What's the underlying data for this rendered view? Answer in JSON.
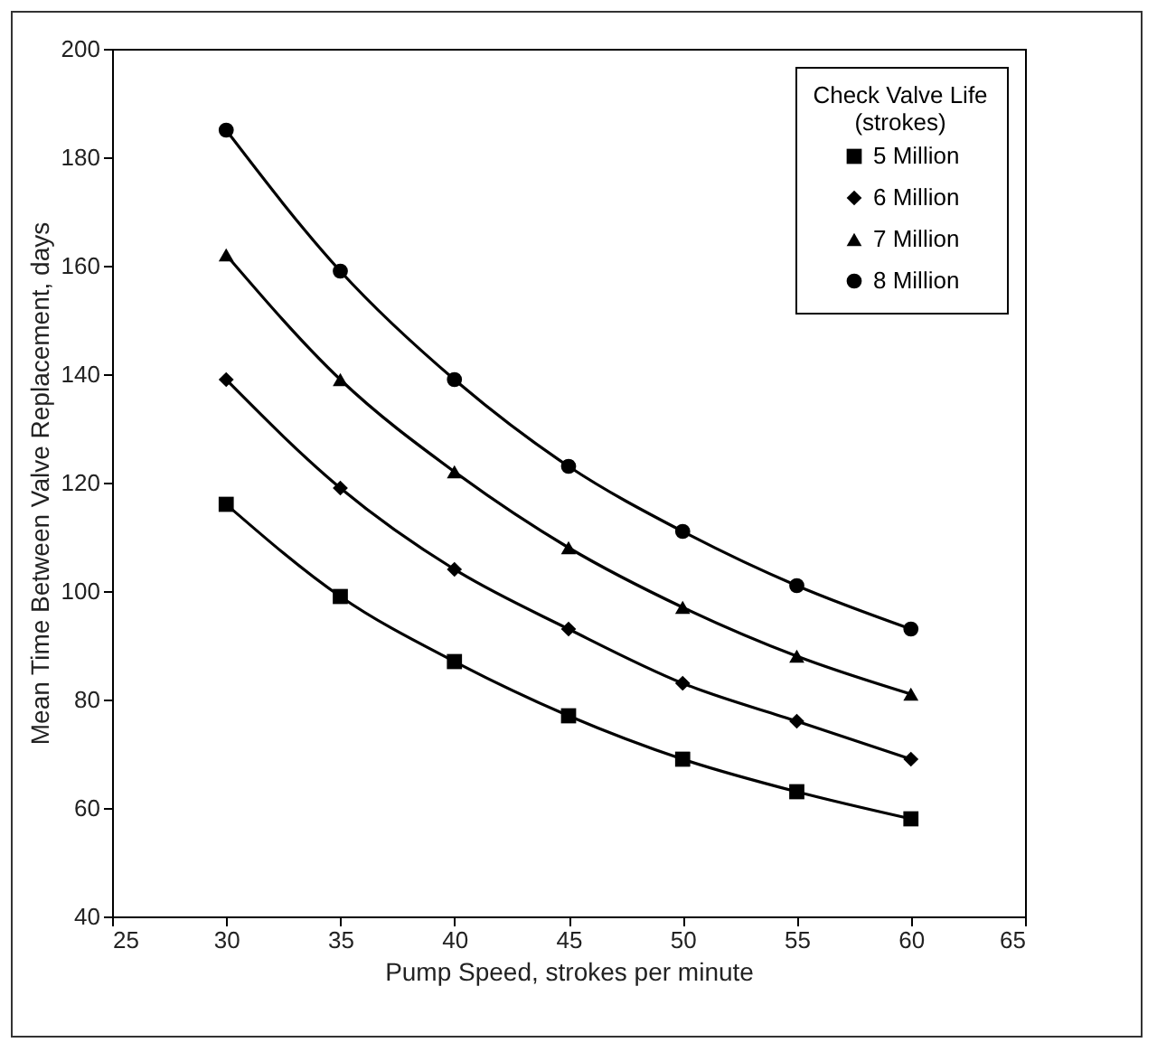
{
  "chart_data": {
    "type": "line",
    "xlabel": "Pump Speed, strokes per minute",
    "ylabel": "Mean Time Between Valve Replacement, days",
    "legend_title": "Check Valve Life\n(strokes)",
    "legend": "top right",
    "grid": false,
    "line_style": "solid",
    "x": [
      30,
      35,
      40,
      45,
      50,
      55,
      60
    ],
    "xlim": [
      25,
      65
    ],
    "xticks": [
      25,
      30,
      35,
      40,
      45,
      50,
      55,
      60,
      65
    ],
    "ylim": [
      40,
      200
    ],
    "yticks": [
      40,
      60,
      80,
      100,
      120,
      140,
      160,
      180,
      200
    ],
    "series": [
      {
        "name": "5 Million",
        "color": "#000000",
        "marker": "square",
        "values": [
          116,
          99,
          87,
          77,
          69,
          63,
          58
        ]
      },
      {
        "name": "6 Million",
        "color": "#000000",
        "marker": "diamond",
        "values": [
          139,
          119,
          104,
          93,
          83,
          76,
          69
        ]
      },
      {
        "name": "7 Million",
        "color": "#000000",
        "marker": "triangle",
        "values": [
          162,
          139,
          122,
          108,
          97,
          88,
          81
        ]
      },
      {
        "name": "8 Million",
        "color": "#000000",
        "marker": "circle",
        "values": [
          185,
          159,
          139,
          123,
          111,
          101,
          93
        ]
      }
    ]
  }
}
